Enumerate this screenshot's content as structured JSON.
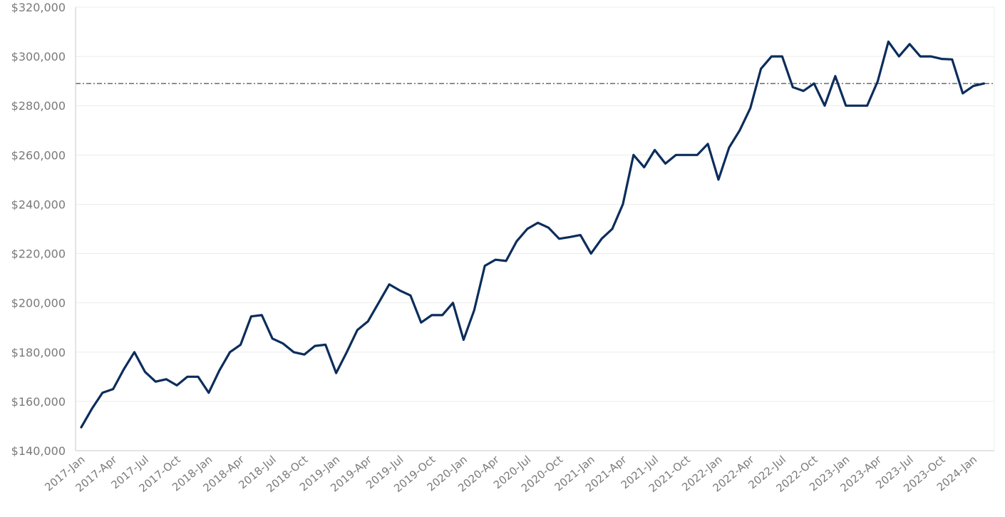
{
  "chart_data": {
    "type": "line",
    "title": "",
    "xlabel": "",
    "ylabel": "",
    "ylim": [
      140000,
      320000
    ],
    "yticks": [
      140000,
      160000,
      180000,
      200000,
      220000,
      240000,
      260000,
      280000,
      300000,
      320000
    ],
    "ytick_labels": [
      "$140,000",
      "$160,000",
      "$180,000",
      "$200,000",
      "$220,000",
      "$240,000",
      "$260,000",
      "$280,000",
      "$300,000",
      "$320,000"
    ],
    "xtick_labels": [
      "2017-Jan",
      "2017-Apr",
      "2017-Jul",
      "2017-Oct",
      "2018-Jan",
      "2018-Apr",
      "2018-Jul",
      "2018-Oct",
      "2019-Jan",
      "2019-Apr",
      "2019-Jul",
      "2019-Oct",
      "2020-Jan",
      "2020-Apr",
      "2020-Jul",
      "2020-Oct",
      "2021-Jan",
      "2021-Apr",
      "2021-Jul",
      "2021-Oct",
      "2022-Jan",
      "2022-Apr",
      "2022-Jul",
      "2022-Oct",
      "2023-Jan",
      "2023-Apr",
      "2023-Jul",
      "2023-Oct",
      "2024-Jan"
    ],
    "xtick_step_months": 3,
    "grid": true,
    "legend": "none",
    "colors": {
      "line": "#0b2d5c",
      "reference_line": "#222222"
    },
    "reference_line": {
      "value": 289000,
      "style": "dash-dot"
    },
    "series": [
      {
        "values": [
          149500,
          157000,
          163500,
          165000,
          173000,
          180000,
          172000,
          168000,
          169000,
          166500,
          170000,
          170000,
          163500,
          172500,
          180000,
          183000,
          194500,
          195000,
          185500,
          183500,
          180000,
          179000,
          182500,
          183000,
          171500,
          180000,
          189000,
          192500,
          200000,
          207500,
          205000,
          203000,
          192000,
          195000,
          195000,
          200000,
          185000,
          197000,
          215000,
          217500,
          217000,
          225000,
          230000,
          232500,
          230500,
          226000,
          226700,
          227500,
          220000,
          226000,
          230000,
          240000,
          260000,
          255000,
          262000,
          256500,
          260000,
          260000,
          260000,
          264500,
          250000,
          263000,
          270000,
          279000,
          295000,
          300000,
          300000,
          287500,
          286000,
          289000,
          280000,
          292000,
          280000,
          280000,
          280000,
          290000,
          306000,
          300000,
          305000,
          300000,
          300000,
          299000,
          298800,
          285000,
          288000,
          289000
        ]
      }
    ]
  }
}
